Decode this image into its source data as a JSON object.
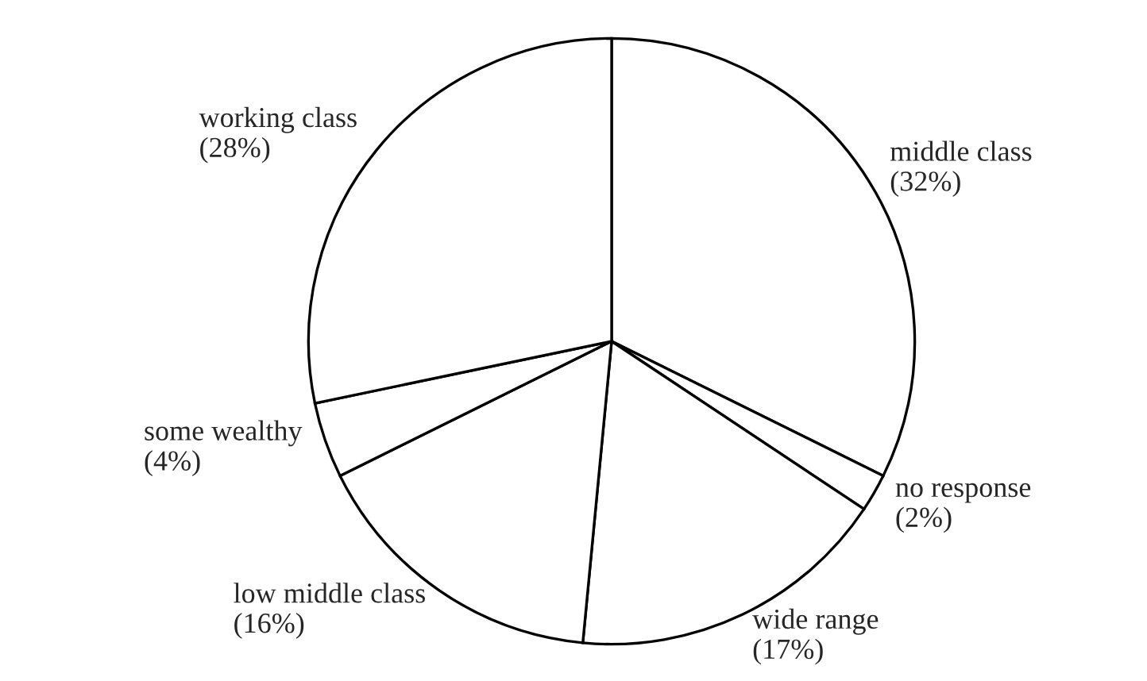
{
  "chart_data": {
    "type": "pie",
    "categories": [
      "middle class",
      "no response",
      "wide range",
      "low middle class",
      "some wealthy",
      "working class"
    ],
    "values": [
      32,
      2,
      17,
      16,
      4,
      28
    ],
    "value_labels": [
      "(32%)",
      "(2%)",
      "(17%)",
      "(16%)",
      "(4%)",
      "(28%)"
    ],
    "colors": [
      "#ffffff",
      "#ffffff",
      "#ffffff",
      "#ffffff",
      "#ffffff",
      "#ffffff"
    ]
  }
}
